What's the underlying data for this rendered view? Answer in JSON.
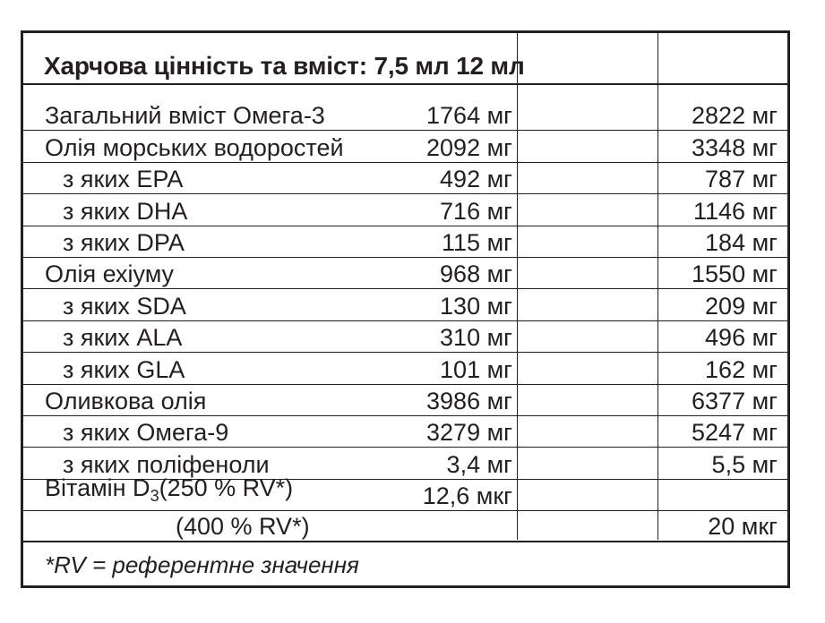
{
  "header": {
    "title": "Харчова цінність та вміст:",
    "col1": "7,5 мл",
    "col2": "12 мл"
  },
  "rows": [
    {
      "name": "Загальний вміст Омега-3",
      "v1": "1764 мг",
      "v2": "2822 мг",
      "indent": false
    },
    {
      "name": "Олія морських водоростей",
      "v1": "2092 мг",
      "v2": "3348 мг",
      "indent": false
    },
    {
      "name": "з яких EPA",
      "v1": "492 мг",
      "v2": "787 мг",
      "indent": true
    },
    {
      "name": "з яких DHA",
      "v1": "716 мг",
      "v2": "1146 мг",
      "indent": true
    },
    {
      "name": "з яких DPA",
      "v1": "115 мг",
      "v2": "184 мг",
      "indent": true
    },
    {
      "name": "Олія ехіуму",
      "v1": "968 мг",
      "v2": "1550 мг",
      "indent": false
    },
    {
      "name": "з яких SDA",
      "v1": "130 мг",
      "v2": "209 мг",
      "indent": true
    },
    {
      "name": "з яких ALA",
      "v1": "310 мг",
      "v2": "496 мг",
      "indent": true
    },
    {
      "name": "з яких GLA",
      "v1": "101 мг",
      "v2": "162 мг",
      "indent": true
    },
    {
      "name": "Оливкова олія",
      "v1": "3986 мг",
      "v2": "6377 мг",
      "indent": false
    },
    {
      "name": "з яких Омега-9",
      "v1": "3279 мг",
      "v2": "5247 мг",
      "indent": true
    },
    {
      "name": "з яких поліфеноли",
      "v1": "3,4 мг",
      "v2": "5,5 мг",
      "indent": true
    }
  ],
  "vitamin": {
    "name_prefix": "Вітамін D",
    "name_sub": "3",
    "rv1": "(250 % RV*)",
    "v1": "12,6 мкг",
    "rv2": "(400 % RV*)",
    "v2": "20 мкг"
  },
  "footnote": "*RV = референтне значення"
}
